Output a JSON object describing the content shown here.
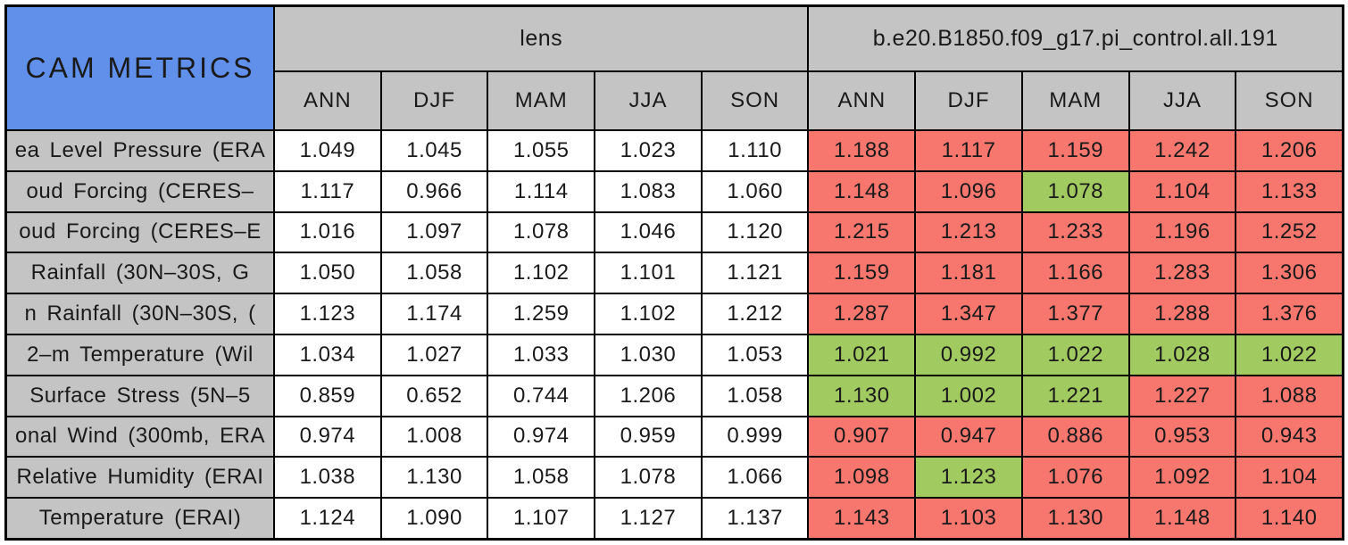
{
  "colors": {
    "corner_blue": "#6090EA",
    "header_gray": "#C4C4C4",
    "cell_white": "#FFFFFF",
    "cell_red": "#F7766E",
    "cell_green": "#A1CB60",
    "grid_border": "#000000"
  },
  "chart_data": {
    "type": "table",
    "corner_title": "CAM METRICS",
    "groups": [
      {
        "name": "lens",
        "seasons": [
          "ANN",
          "DJF",
          "MAM",
          "JJA",
          "SON"
        ]
      },
      {
        "name": "b.e20.B1850.f09_g17.pi_control.all.191",
        "seasons": [
          "ANN",
          "DJF",
          "MAM",
          "JJA",
          "SON"
        ]
      }
    ],
    "rows": [
      {
        "label": "ea Level Pressure (ERA",
        "lens": {
          "values": [
            "1.049",
            "1.045",
            "1.055",
            "1.023",
            "1.110"
          ],
          "colors": [
            "white",
            "white",
            "white",
            "white",
            "white"
          ]
        },
        "control": {
          "values": [
            "1.188",
            "1.117",
            "1.159",
            "1.242",
            "1.206"
          ],
          "colors": [
            "red",
            "red",
            "red",
            "red",
            "red"
          ]
        }
      },
      {
        "label": "oud Forcing (CERES–",
        "lens": {
          "values": [
            "1.117",
            "0.966",
            "1.114",
            "1.083",
            "1.060"
          ],
          "colors": [
            "white",
            "white",
            "white",
            "white",
            "white"
          ]
        },
        "control": {
          "values": [
            "1.148",
            "1.096",
            "1.078",
            "1.104",
            "1.133"
          ],
          "colors": [
            "red",
            "red",
            "green",
            "red",
            "red"
          ]
        }
      },
      {
        "label": "oud Forcing (CERES–E",
        "lens": {
          "values": [
            "1.016",
            "1.097",
            "1.078",
            "1.046",
            "1.120"
          ],
          "colors": [
            "white",
            "white",
            "white",
            "white",
            "white"
          ]
        },
        "control": {
          "values": [
            "1.215",
            "1.213",
            "1.233",
            "1.196",
            "1.252"
          ],
          "colors": [
            "red",
            "red",
            "red",
            "red",
            "red"
          ]
        }
      },
      {
        "label": "Rainfall (30N–30S, G",
        "lens": {
          "values": [
            "1.050",
            "1.058",
            "1.102",
            "1.101",
            "1.121"
          ],
          "colors": [
            "white",
            "white",
            "white",
            "white",
            "white"
          ]
        },
        "control": {
          "values": [
            "1.159",
            "1.181",
            "1.166",
            "1.283",
            "1.306"
          ],
          "colors": [
            "red",
            "red",
            "red",
            "red",
            "red"
          ]
        }
      },
      {
        "label": "n Rainfall (30N–30S, (",
        "lens": {
          "values": [
            "1.123",
            "1.174",
            "1.259",
            "1.102",
            "1.212"
          ],
          "colors": [
            "white",
            "white",
            "white",
            "white",
            "white"
          ]
        },
        "control": {
          "values": [
            "1.287",
            "1.347",
            "1.377",
            "1.288",
            "1.376"
          ],
          "colors": [
            "red",
            "red",
            "red",
            "red",
            "red"
          ]
        }
      },
      {
        "label": "2–m Temperature (Wil",
        "lens": {
          "values": [
            "1.034",
            "1.027",
            "1.033",
            "1.030",
            "1.053"
          ],
          "colors": [
            "white",
            "white",
            "white",
            "white",
            "white"
          ]
        },
        "control": {
          "values": [
            "1.021",
            "0.992",
            "1.022",
            "1.028",
            "1.022"
          ],
          "colors": [
            "green",
            "green",
            "green",
            "green",
            "green"
          ]
        }
      },
      {
        "label": "Surface Stress (5N–5",
        "lens": {
          "values": [
            "0.859",
            "0.652",
            "0.744",
            "1.206",
            "1.058"
          ],
          "colors": [
            "white",
            "white",
            "white",
            "white",
            "white"
          ]
        },
        "control": {
          "values": [
            "1.130",
            "1.002",
            "1.221",
            "1.227",
            "1.088"
          ],
          "colors": [
            "green",
            "green",
            "green",
            "red",
            "red"
          ]
        }
      },
      {
        "label": "onal Wind (300mb, ERA",
        "lens": {
          "values": [
            "0.974",
            "1.008",
            "0.974",
            "0.959",
            "0.999"
          ],
          "colors": [
            "white",
            "white",
            "white",
            "white",
            "white"
          ]
        },
        "control": {
          "values": [
            "0.907",
            "0.947",
            "0.886",
            "0.953",
            "0.943"
          ],
          "colors": [
            "red",
            "red",
            "red",
            "red",
            "red"
          ]
        }
      },
      {
        "label": "Relative Humidity (ERAI",
        "lens": {
          "values": [
            "1.038",
            "1.130",
            "1.058",
            "1.078",
            "1.066"
          ],
          "colors": [
            "white",
            "white",
            "white",
            "white",
            "white"
          ]
        },
        "control": {
          "values": [
            "1.098",
            "1.123",
            "1.076",
            "1.092",
            "1.104"
          ],
          "colors": [
            "red",
            "green",
            "red",
            "red",
            "red"
          ]
        }
      },
      {
        "label": "Temperature (ERAI)",
        "lens": {
          "values": [
            "1.124",
            "1.090",
            "1.107",
            "1.127",
            "1.137"
          ],
          "colors": [
            "white",
            "white",
            "white",
            "white",
            "white"
          ]
        },
        "control": {
          "values": [
            "1.143",
            "1.103",
            "1.130",
            "1.148",
            "1.140"
          ],
          "colors": [
            "red",
            "red",
            "red",
            "red",
            "red"
          ]
        }
      }
    ]
  }
}
